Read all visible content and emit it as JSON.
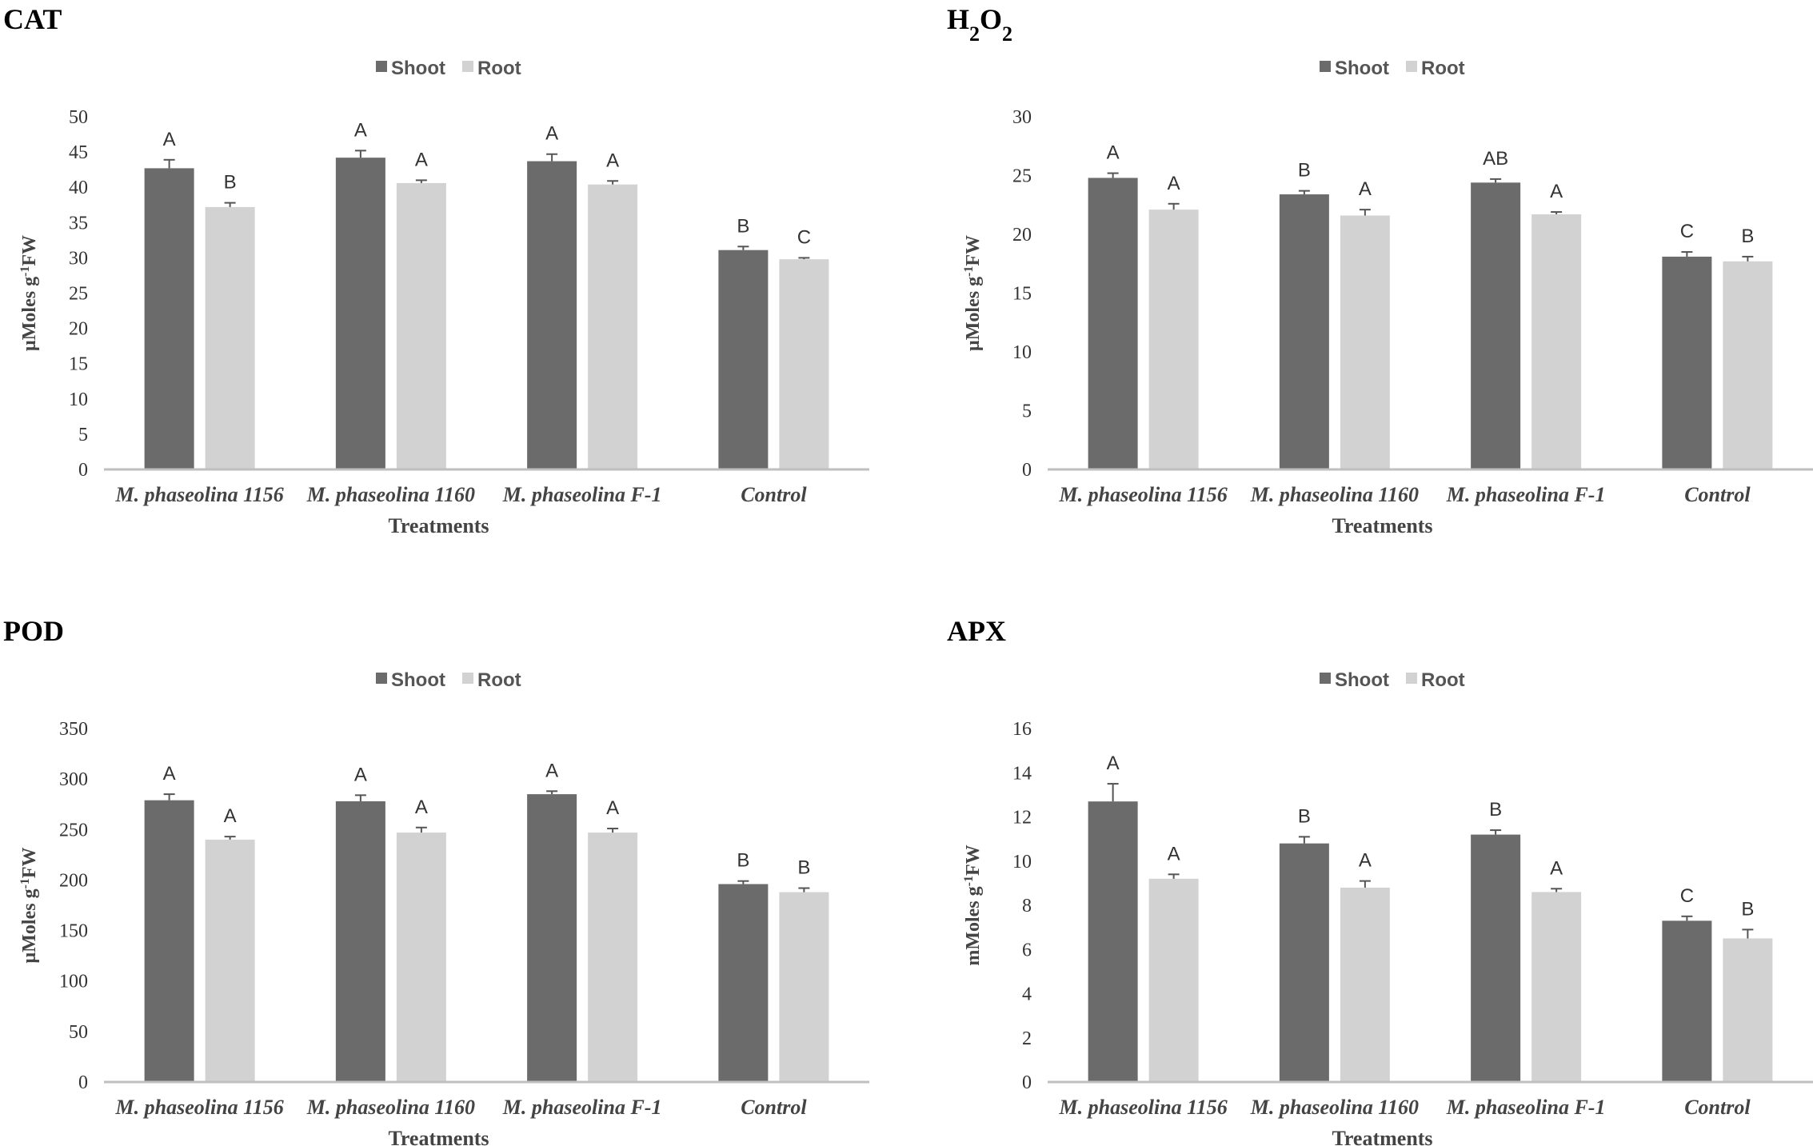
{
  "colors": {
    "shoot": "#6b6b6b",
    "root": "#d2d2d2",
    "axis": "#bfbfbf",
    "errorbar": "#555555"
  },
  "chart_data": [
    {
      "id": "cat",
      "type": "bar",
      "title": "CAT",
      "title_parts": [
        {
          "t": "CAT",
          "sub": false
        }
      ],
      "ylabel": "µMoles g-1FW",
      "ylabel_parts": [
        {
          "t": "µMoles g",
          "sup": false
        },
        {
          "t": "-1",
          "sup": true
        },
        {
          "t": "FW",
          "sup": false
        }
      ],
      "xlabel": "Treatments",
      "categories": [
        "M. phaseolina 1156",
        "M. phaseolina 1160",
        "M. phaseolina F-1",
        "Control"
      ],
      "ylim": [
        0,
        50
      ],
      "yticks": [
        0,
        5,
        10,
        15,
        20,
        25,
        30,
        35,
        40,
        45,
        50
      ],
      "legend": {
        "position": "top-center",
        "entries": [
          "Shoot",
          "Root"
        ]
      },
      "series": [
        {
          "name": "Shoot",
          "values": [
            42.7,
            44.2,
            43.7,
            31.1
          ],
          "errors": [
            1.2,
            1.0,
            1.0,
            0.5
          ],
          "letters": [
            "A",
            "A",
            "A",
            "B"
          ]
        },
        {
          "name": "Root",
          "values": [
            37.2,
            40.6,
            40.4,
            29.8
          ],
          "errors": [
            0.6,
            0.4,
            0.5,
            0.2
          ],
          "letters": [
            "B",
            "A",
            "A",
            "C"
          ]
        }
      ]
    },
    {
      "id": "h2o2",
      "type": "bar",
      "title": "H2O2",
      "title_parts": [
        {
          "t": "H",
          "sub": false
        },
        {
          "t": "2",
          "sub": true
        },
        {
          "t": "O",
          "sub": false
        },
        {
          "t": "2",
          "sub": true
        }
      ],
      "ylabel": "µMoles g-1FW",
      "ylabel_parts": [
        {
          "t": "µMoles g",
          "sup": false
        },
        {
          "t": "-1",
          "sup": true
        },
        {
          "t": "FW",
          "sup": false
        }
      ],
      "xlabel": "Treatments",
      "categories": [
        "M. phaseolina 1156",
        "M. phaseolina 1160",
        "M. phaseolina F-1",
        "Control"
      ],
      "ylim": [
        0,
        30
      ],
      "yticks": [
        0,
        5,
        10,
        15,
        20,
        25,
        30
      ],
      "legend": {
        "position": "top-center",
        "entries": [
          "Shoot",
          "Root"
        ]
      },
      "series": [
        {
          "name": "Shoot",
          "values": [
            24.8,
            23.4,
            24.4,
            18.1
          ],
          "errors": [
            0.4,
            0.3,
            0.3,
            0.4
          ],
          "letters": [
            "A",
            "B",
            "AB",
            "C"
          ]
        },
        {
          "name": "Root",
          "values": [
            22.1,
            21.6,
            21.7,
            17.7
          ],
          "errors": [
            0.5,
            0.5,
            0.2,
            0.4
          ],
          "letters": [
            "A",
            "A",
            "A",
            "B"
          ]
        }
      ]
    },
    {
      "id": "pod",
      "type": "bar",
      "title": "POD",
      "title_parts": [
        {
          "t": "POD",
          "sub": false
        }
      ],
      "ylabel": "µMoles g-1FW",
      "ylabel_parts": [
        {
          "t": "µMoles g",
          "sup": false
        },
        {
          "t": "-1",
          "sup": true
        },
        {
          "t": "FW",
          "sup": false
        }
      ],
      "xlabel": "Treatments",
      "categories": [
        "M. phaseolina 1156",
        "M. phaseolina 1160",
        "M. phaseolina F-1",
        "Control"
      ],
      "ylim": [
        0,
        350
      ],
      "yticks": [
        0,
        50,
        100,
        150,
        200,
        250,
        300,
        350
      ],
      "legend": {
        "position": "top-center",
        "entries": [
          "Shoot",
          "Root"
        ]
      },
      "series": [
        {
          "name": "Shoot",
          "values": [
            279,
            278,
            285,
            196
          ],
          "errors": [
            6,
            6,
            3,
            3
          ],
          "letters": [
            "A",
            "A",
            "A",
            "B"
          ]
        },
        {
          "name": "Root",
          "values": [
            240,
            247,
            247,
            188
          ],
          "errors": [
            3,
            5,
            4,
            4
          ],
          "letters": [
            "A",
            "A",
            "A",
            "B"
          ]
        }
      ]
    },
    {
      "id": "apx",
      "type": "bar",
      "title": "APX",
      "title_parts": [
        {
          "t": "APX",
          "sub": false
        }
      ],
      "ylabel": "mMoles g-1FW",
      "ylabel_parts": [
        {
          "t": "mMoles g",
          "sup": false
        },
        {
          "t": "-1",
          "sup": true
        },
        {
          "t": "FW",
          "sup": false
        }
      ],
      "xlabel": "Treatments",
      "categories": [
        "M. phaseolina 1156",
        "M. phaseolina 1160",
        "M. phaseolina F-1",
        "Control"
      ],
      "ylim": [
        0,
        16
      ],
      "yticks": [
        0,
        2,
        4,
        6,
        8,
        10,
        12,
        14,
        16
      ],
      "legend": {
        "position": "top-center",
        "entries": [
          "Shoot",
          "Root"
        ]
      },
      "series": [
        {
          "name": "Shoot",
          "values": [
            12.7,
            10.8,
            11.2,
            7.3
          ],
          "errors": [
            0.8,
            0.3,
            0.2,
            0.2
          ],
          "letters": [
            "A",
            "B",
            "B",
            "C"
          ]
        },
        {
          "name": "Root",
          "values": [
            9.2,
            8.8,
            8.6,
            6.5
          ],
          "errors": [
            0.2,
            0.3,
            0.15,
            0.4
          ],
          "letters": [
            "A",
            "A",
            "A",
            "B"
          ]
        }
      ]
    }
  ]
}
